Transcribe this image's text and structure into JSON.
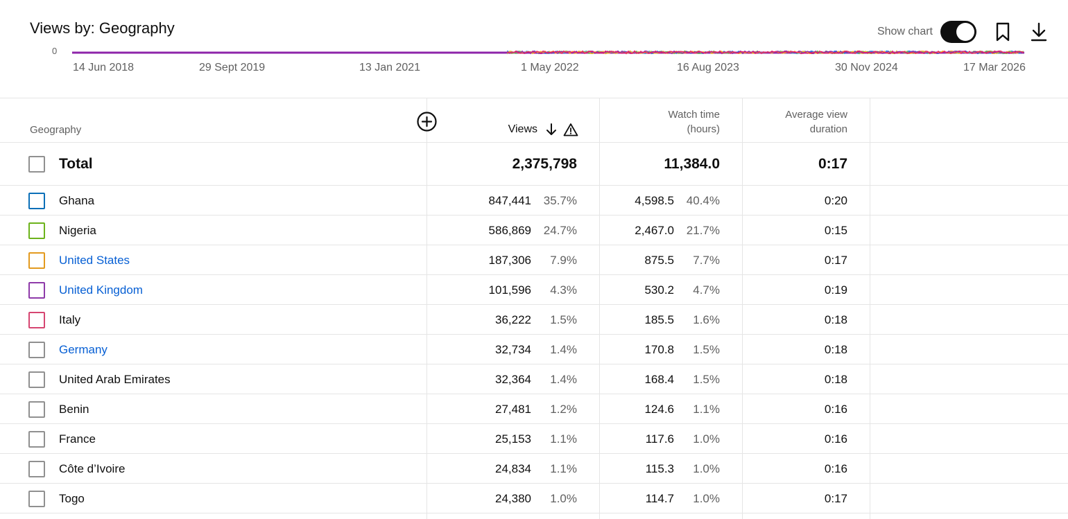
{
  "header": {
    "title": "Views by: Geography",
    "show_chart_label": "Show chart",
    "show_chart_on": true,
    "bookmark_icon": "bookmark-icon",
    "download_icon": "download-icon"
  },
  "chart": {
    "y_zero_label": "0",
    "x_ticks": [
      "14 Jun 2018",
      "29 Sept 2019",
      "13 Jan 2021",
      "1 May 2022",
      "16 Aug 2023",
      "30 Nov 2024",
      "17 Mar 2026"
    ],
    "series_colors": [
      "#1e88e5",
      "#7cb342",
      "#f9a825",
      "#8e24aa",
      "#e91e63"
    ]
  },
  "table": {
    "columns": {
      "geography": "Geography",
      "views": "Views",
      "watch_time_line1": "Watch time",
      "watch_time_line2": "(hours)",
      "avg_line1": "Average view",
      "avg_line2": "duration"
    },
    "total": {
      "label": "Total",
      "views": "2,375,798",
      "watch_time": "11,384.0",
      "avg_duration": "0:17"
    },
    "rows": [
      {
        "name": "Ghana",
        "views": "847,441",
        "views_pct": "35.7%",
        "watch": "4,598.5",
        "watch_pct": "40.4%",
        "avg": "0:20",
        "color": "#0b6fb8",
        "link": false
      },
      {
        "name": "Nigeria",
        "views": "586,869",
        "views_pct": "24.7%",
        "watch": "2,467.0",
        "watch_pct": "21.7%",
        "avg": "0:15",
        "color": "#6cb31b",
        "link": false
      },
      {
        "name": "United States",
        "views": "187,306",
        "views_pct": "7.9%",
        "watch": "875.5",
        "watch_pct": "7.7%",
        "avg": "0:17",
        "color": "#e39a1f",
        "link": true
      },
      {
        "name": "United Kingdom",
        "views": "101,596",
        "views_pct": "4.3%",
        "watch": "530.2",
        "watch_pct": "4.7%",
        "avg": "0:19",
        "color": "#8e3aa9",
        "link": true
      },
      {
        "name": "Italy",
        "views": "36,222",
        "views_pct": "1.5%",
        "watch": "185.5",
        "watch_pct": "1.6%",
        "avg": "0:18",
        "color": "#d64571",
        "link": false
      },
      {
        "name": "Germany",
        "views": "32,734",
        "views_pct": "1.4%",
        "watch": "170.8",
        "watch_pct": "1.5%",
        "avg": "0:18",
        "color": "#909090",
        "link": true
      },
      {
        "name": "United Arab Emirates",
        "views": "32,364",
        "views_pct": "1.4%",
        "watch": "168.4",
        "watch_pct": "1.5%",
        "avg": "0:18",
        "color": "#909090",
        "link": false
      },
      {
        "name": "Benin",
        "views": "27,481",
        "views_pct": "1.2%",
        "watch": "124.6",
        "watch_pct": "1.1%",
        "avg": "0:16",
        "color": "#909090",
        "link": false
      },
      {
        "name": "France",
        "views": "25,153",
        "views_pct": "1.1%",
        "watch": "117.6",
        "watch_pct": "1.0%",
        "avg": "0:16",
        "color": "#909090",
        "link": false
      },
      {
        "name": "Côte d’Ivoire",
        "views": "24,834",
        "views_pct": "1.1%",
        "watch": "115.3",
        "watch_pct": "1.0%",
        "avg": "0:16",
        "color": "#909090",
        "link": false
      },
      {
        "name": "Togo",
        "views": "24,380",
        "views_pct": "1.0%",
        "watch": "114.7",
        "watch_pct": "1.0%",
        "avg": "0:17",
        "color": "#909090",
        "link": false
      }
    ]
  }
}
